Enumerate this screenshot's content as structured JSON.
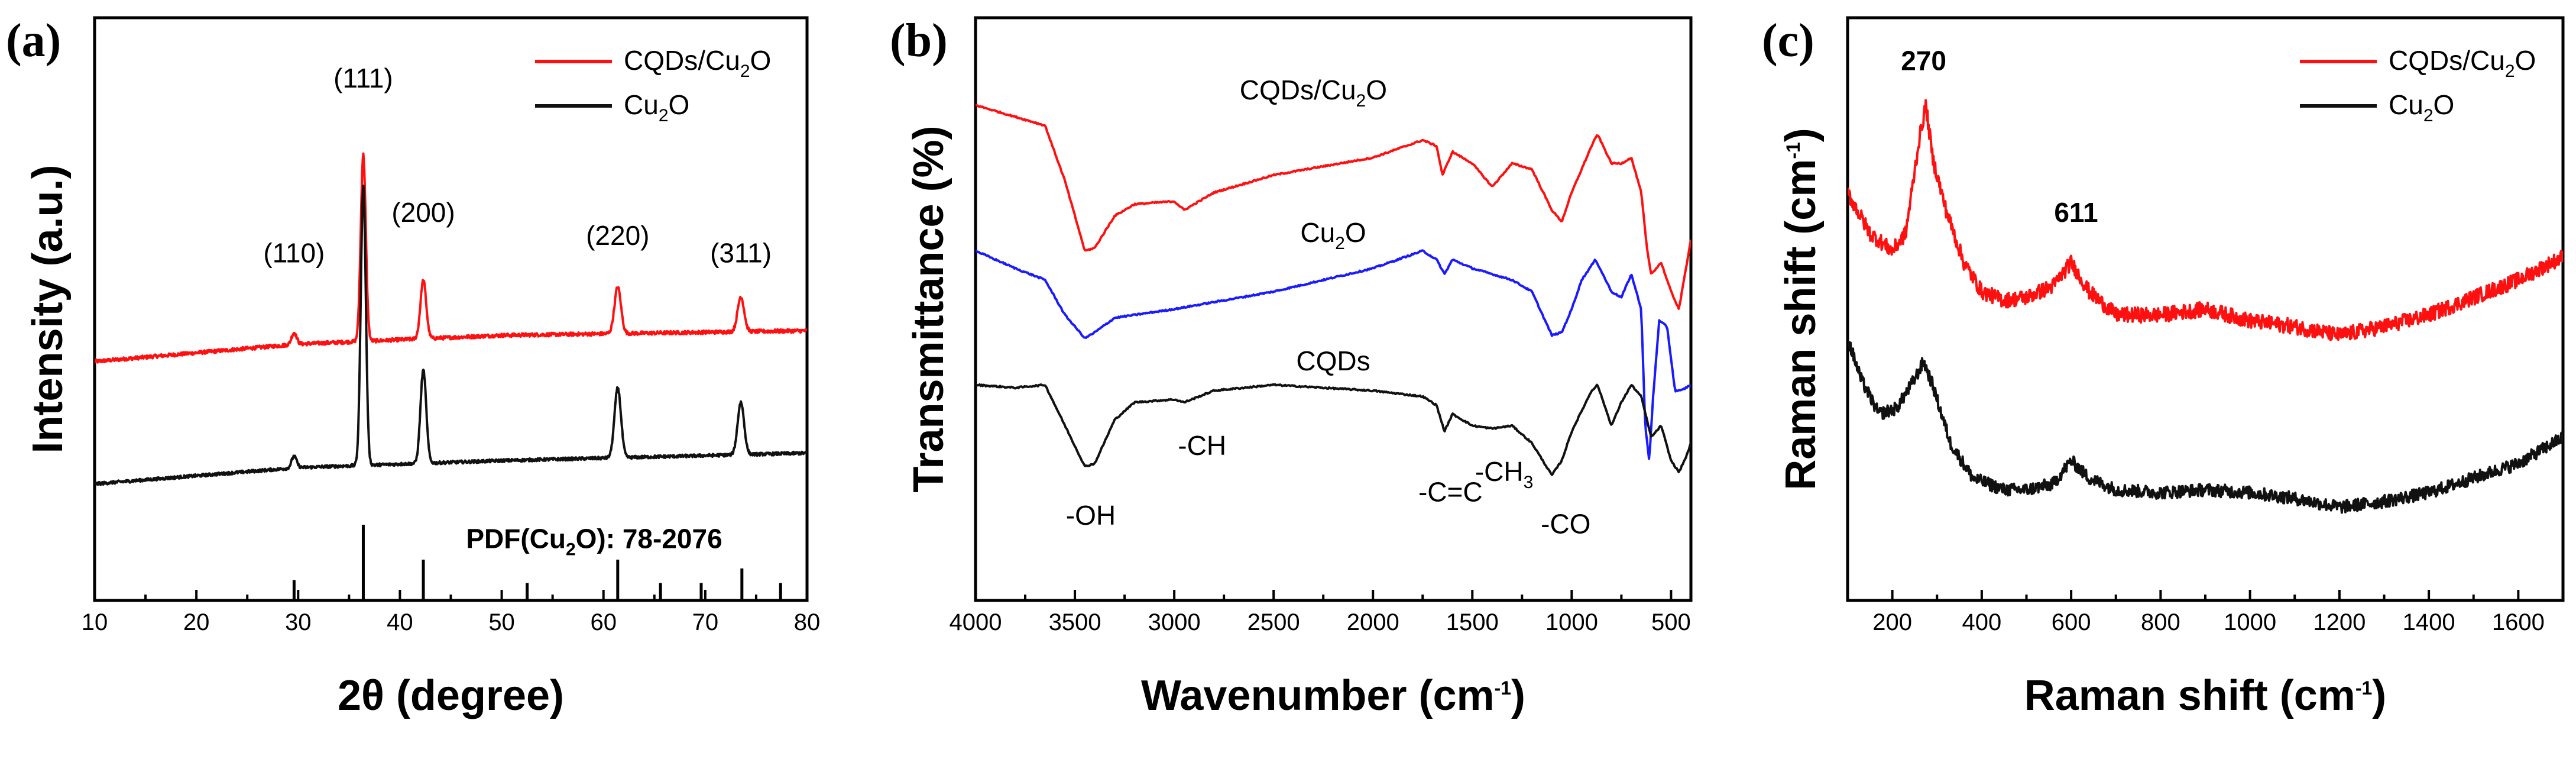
{
  "colors": {
    "red": "#ff1010",
    "black": "#111111",
    "blue": "#1a1aff"
  },
  "chart_data": [
    {
      "type": "line",
      "panel_label": "(a)",
      "title": "",
      "xlabel": "2θ (degree)",
      "ylabel": "Intensity (a.u.)",
      "xlim": [
        10,
        80
      ],
      "ylim": [
        0,
        100
      ],
      "x_ticks": [
        "10",
        "20",
        "30",
        "40",
        "50",
        "60",
        "70",
        "80"
      ],
      "series": [
        {
          "name": "CQDs/Cu2O",
          "color": "#ff1010",
          "baseline": [
            [
              10,
              41
            ],
            [
              30,
              44
            ],
            [
              50,
              45.5
            ],
            [
              80,
              46.3
            ]
          ],
          "peaks": [
            [
              29.6,
              2,
              0.35
            ],
            [
              36.4,
              32,
              0.35
            ],
            [
              42.3,
              10,
              0.4
            ],
            [
              61.4,
              8,
              0.45
            ],
            [
              73.5,
              6,
              0.45
            ]
          ],
          "noise": 0.6
        },
        {
          "name": "Cu2O",
          "color": "#111111",
          "baseline": [
            [
              10,
              20
            ],
            [
              30,
              22.8
            ],
            [
              50,
              24
            ],
            [
              80,
              25.3
            ]
          ],
          "peaks": [
            [
              29.6,
              2,
              0.35
            ],
            [
              36.4,
              48,
              0.35
            ],
            [
              42.3,
              16,
              0.4
            ],
            [
              61.4,
              12,
              0.45
            ],
            [
              73.5,
              9,
              0.45
            ]
          ],
          "noise": 0.5
        }
      ],
      "reference": {
        "label": "PDF(Cu2O): 78-2076",
        "lines": [
          [
            29.6,
            3.5
          ],
          [
            36.4,
            13
          ],
          [
            42.3,
            7
          ],
          [
            52.5,
            3
          ],
          [
            61.4,
            7
          ],
          [
            65.6,
            3
          ],
          [
            69.6,
            3
          ],
          [
            73.6,
            5.5
          ],
          [
            77.4,
            3
          ]
        ]
      },
      "peak_labels": [
        {
          "text": "(110)",
          "x": 29.6,
          "y": 58
        },
        {
          "text": "(111)",
          "x": 36.4,
          "y": 88
        },
        {
          "text": "(200)",
          "x": 42.3,
          "y": 65
        },
        {
          "text": "(220)",
          "x": 61.4,
          "y": 61
        },
        {
          "text": "(311)",
          "x": 73.5,
          "y": 58
        }
      ],
      "legend": [
        {
          "text": "CQDs/Cu2O",
          "base": "CQDs/Cu",
          "sub": "2",
          "tail": "O",
          "color": "#ff1010"
        },
        {
          "text": "Cu2O",
          "base": "Cu",
          "sub": "2",
          "tail": "O",
          "color": "#111111"
        }
      ],
      "legend_position": "top-right",
      "ref_label_parts": {
        "base": "PDF(Cu",
        "sub": "2",
        "tail": "O): 78-2076"
      }
    },
    {
      "type": "line",
      "panel_label": "(b)",
      "title": "",
      "xlabel": "Wavenumber (cm-1)",
      "xlabel_parts": {
        "base": "Wavenumber (cm",
        "sup": "-1",
        "tail": ")"
      },
      "ylabel": "Transmittance (%)",
      "xlim": [
        4000,
        400
      ],
      "ylim": [
        0,
        100
      ],
      "x_ticks": [
        "4000",
        "3500",
        "3000",
        "2500",
        "2000",
        "1500",
        "1000",
        "500"
      ],
      "series": [
        {
          "name": "CQDs/Cu2O",
          "color": "#ff1010",
          "points": [
            [
              4000,
              85
            ],
            [
              3800,
              83
            ],
            [
              3650,
              81.5
            ],
            [
              3550,
              72
            ],
            [
              3450,
              60
            ],
            [
              3400,
              60.5
            ],
            [
              3300,
              66
            ],
            [
              3200,
              68
            ],
            [
              3000,
              68.5
            ],
            [
              2950,
              67
            ],
            [
              2800,
              70
            ],
            [
              2500,
              73
            ],
            [
              2000,
              76
            ],
            [
              1750,
              79
            ],
            [
              1680,
              78
            ],
            [
              1650,
              73
            ],
            [
              1600,
              77
            ],
            [
              1500,
              75
            ],
            [
              1400,
              71
            ],
            [
              1300,
              75
            ],
            [
              1200,
              74
            ],
            [
              1100,
              67
            ],
            [
              1050,
              65
            ],
            [
              1000,
              70
            ],
            [
              900,
              78
            ],
            [
              870,
              80
            ],
            [
              800,
              75
            ],
            [
              750,
              75
            ],
            [
              700,
              76
            ],
            [
              650,
              70
            ],
            [
              620,
              60
            ],
            [
              600,
              56
            ],
            [
              550,
              58
            ],
            [
              500,
              53
            ],
            [
              460,
              50
            ],
            [
              420,
              58
            ],
            [
              400,
              62
            ]
          ]
        },
        {
          "name": "Cu2O",
          "color": "#1a1aff",
          "points": [
            [
              4000,
              60
            ],
            [
              3800,
              57
            ],
            [
              3650,
              55
            ],
            [
              3550,
              49
            ],
            [
              3450,
              45
            ],
            [
              3400,
              46
            ],
            [
              3300,
              48.5
            ],
            [
              3000,
              50
            ],
            [
              2500,
              53
            ],
            [
              2000,
              57
            ],
            [
              1750,
              60
            ],
            [
              1680,
              58.5
            ],
            [
              1640,
              56
            ],
            [
              1600,
              58.5
            ],
            [
              1500,
              57
            ],
            [
              1300,
              55
            ],
            [
              1200,
              53
            ],
            [
              1100,
              45.5
            ],
            [
              1050,
              46
            ],
            [
              1000,
              50
            ],
            [
              950,
              55
            ],
            [
              880,
              58.5
            ],
            [
              800,
              53
            ],
            [
              750,
              52
            ],
            [
              700,
              56
            ],
            [
              650,
              50
            ],
            [
              630,
              30
            ],
            [
              610,
              24
            ],
            [
              590,
              35
            ],
            [
              560,
              48
            ],
            [
              520,
              47
            ],
            [
              480,
              36
            ],
            [
              450,
              36
            ],
            [
              400,
              37
            ]
          ]
        },
        {
          "name": "CQDs",
          "color": "#111111",
          "points": [
            [
              4000,
              37
            ],
            [
              3800,
              36.5
            ],
            [
              3650,
              37
            ],
            [
              3550,
              30
            ],
            [
              3450,
              23
            ],
            [
              3400,
              23.5
            ],
            [
              3300,
              31
            ],
            [
              3200,
              34
            ],
            [
              3000,
              34.5
            ],
            [
              2950,
              34
            ],
            [
              2800,
              36
            ],
            [
              2500,
              37
            ],
            [
              2000,
              36
            ],
            [
              1750,
              35
            ],
            [
              1680,
              33.5
            ],
            [
              1640,
              29
            ],
            [
              1600,
              32
            ],
            [
              1500,
              30
            ],
            [
              1400,
              29.5
            ],
            [
              1300,
              30
            ],
            [
              1200,
              27
            ],
            [
              1100,
              21.5
            ],
            [
              1050,
              24
            ],
            [
              1000,
              29
            ],
            [
              900,
              36
            ],
            [
              870,
              37
            ],
            [
              800,
              30
            ],
            [
              750,
              34
            ],
            [
              700,
              37
            ],
            [
              650,
              35
            ],
            [
              600,
              28
            ],
            [
              550,
              30
            ],
            [
              500,
              24
            ],
            [
              460,
              22
            ],
            [
              420,
              25
            ],
            [
              400,
              27
            ]
          ]
        }
      ],
      "annotations": [
        {
          "text": "CQDs/Cu2O",
          "base": "CQDs/Cu",
          "sub": "2",
          "tail": "O",
          "x": 2300,
          "y": 86
        },
        {
          "text": "Cu2O",
          "base": "Cu",
          "sub": "2",
          "tail": "O",
          "x": 2200,
          "y": 61.5
        },
        {
          "text": "CQDs",
          "base": "CQDs",
          "sub": "",
          "tail": "",
          "x": 2200,
          "y": 39.5
        },
        {
          "text": "-OH",
          "base": "-OH",
          "sub": "",
          "tail": "",
          "x": 3420,
          "y": 13
        },
        {
          "text": "-CH",
          "base": "-CH",
          "sub": "",
          "tail": "",
          "x": 2860,
          "y": 25
        },
        {
          "text": "-C=C",
          "base": "-C=C",
          "sub": "",
          "tail": "",
          "x": 1610,
          "y": 17
        },
        {
          "text": "-CH3",
          "base": "-CH",
          "sub": "3",
          "tail": "",
          "x": 1340,
          "y": 20.5
        },
        {
          "text": "-CO",
          "base": "-CO",
          "sub": "",
          "tail": "",
          "x": 1030,
          "y": 11.5
        }
      ]
    },
    {
      "type": "line",
      "panel_label": "(c)",
      "title": "",
      "xlabel": "Raman shift (cm-1)",
      "xlabel_parts": {
        "base": "Raman shift (cm",
        "sup": "-1",
        "tail": ")"
      },
      "ylabel": "Raman shift (cm-1)",
      "ylabel_parts": {
        "base": "Raman shift (cm",
        "sup": "-1",
        "tail": ")"
      },
      "xlim": [
        100,
        1700
      ],
      "ylim": [
        0,
        100
      ],
      "x_ticks": [
        "200",
        "400",
        "600",
        "800",
        "1000",
        "1200",
        "1400",
        "1600"
      ],
      "series": [
        {
          "name": "CQDs/Cu2O",
          "color": "#ff1010",
          "points": [
            [
              100,
              70
            ],
            [
              150,
              63
            ],
            [
              200,
              60
            ],
            [
              230,
              63
            ],
            [
              260,
              79
            ],
            [
              275,
              85
            ],
            [
              290,
              76
            ],
            [
              320,
              67
            ],
            [
              360,
              58
            ],
            [
              400,
              53
            ],
            [
              450,
              51.5
            ],
            [
              500,
              52
            ],
            [
              560,
              54
            ],
            [
              600,
              58
            ],
            [
              640,
              53
            ],
            [
              700,
              49
            ],
            [
              800,
              49
            ],
            [
              900,
              50
            ],
            [
              1000,
              48
            ],
            [
              1100,
              47
            ],
            [
              1200,
              45.5
            ],
            [
              1300,
              47
            ],
            [
              1400,
              49
            ],
            [
              1500,
              52
            ],
            [
              1600,
              55
            ],
            [
              1700,
              59
            ]
          ],
          "noise": 1.3
        },
        {
          "name": "Cu2O",
          "color": "#111111",
          "points": [
            [
              100,
              45
            ],
            [
              130,
              38
            ],
            [
              170,
              32
            ],
            [
              210,
              33
            ],
            [
              250,
              38
            ],
            [
              270,
              41
            ],
            [
              290,
              37
            ],
            [
              330,
              27
            ],
            [
              380,
              21
            ],
            [
              450,
              19
            ],
            [
              500,
              19
            ],
            [
              560,
              20
            ],
            [
              600,
              24
            ],
            [
              640,
              21
            ],
            [
              700,
              19
            ],
            [
              800,
              18.5
            ],
            [
              900,
              19
            ],
            [
              1000,
              18.5
            ],
            [
              1100,
              17.5
            ],
            [
              1200,
              16
            ],
            [
              1300,
              17
            ],
            [
              1400,
              18.5
            ],
            [
              1500,
              21
            ],
            [
              1600,
              23.5
            ],
            [
              1700,
              28
            ]
          ],
          "noise": 1.1
        }
      ],
      "peak_labels": [
        {
          "text": "270",
          "x": 270,
          "y": 91
        },
        {
          "text": "611",
          "x": 611,
          "y": 65
        }
      ],
      "legend": [
        {
          "text": "CQDs/Cu2O",
          "base": "CQDs/Cu",
          "sub": "2",
          "tail": "O",
          "color": "#ff1010"
        },
        {
          "text": "Cu2O",
          "base": "Cu",
          "sub": "2",
          "tail": "O",
          "color": "#111111"
        }
      ],
      "legend_position": "top-right"
    }
  ]
}
